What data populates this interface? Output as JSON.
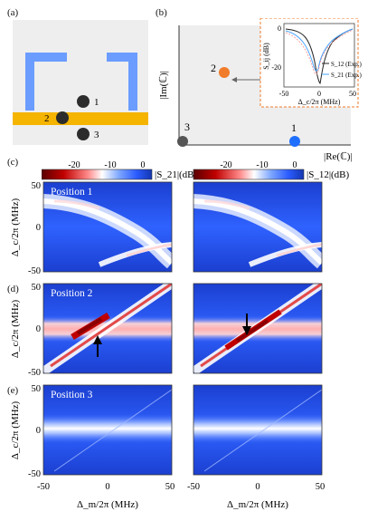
{
  "panels": {
    "a": "(a)",
    "b": "(b)",
    "c": "(c)",
    "d": "(d)",
    "e": "(e)"
  },
  "schematic": {
    "ball_labels": [
      "1",
      "2",
      "3"
    ],
    "colors": {
      "resonator": "#6b9cff",
      "waveguide": "#f5b400",
      "ball": "#2c2c2c"
    }
  },
  "complex_plane": {
    "xlabel": "|Re(ℂ)|",
    "ylabel": "|Im(ℂ)|",
    "points": [
      {
        "label": "1",
        "color": "#1f6fff"
      },
      {
        "label": "2",
        "color": "#f07b2a"
      },
      {
        "label": "3",
        "color": "#555555"
      }
    ],
    "inset": {
      "ylabel": "S_ij (dB)",
      "xlabel": "Δ_c/2π (MHz)",
      "yticks": [
        "0",
        "-20"
      ],
      "xticks": [
        "-50",
        "0",
        "50"
      ],
      "legend": [
        "S_12 (Exp.)",
        "S_21 (Exp.)"
      ],
      "legend_colors": [
        "#222222",
        "#4aa3ff"
      ]
    }
  },
  "colorbar": {
    "ticks": [
      "-20",
      "-10",
      "0"
    ],
    "left_label": "|S_21|(dB)",
    "right_label": "|S_12|(dB)"
  },
  "rows": [
    {
      "label": "Position 1"
    },
    {
      "label": "Position 2"
    },
    {
      "label": "Position 3"
    }
  ],
  "axes": {
    "ylabel": "Δ_c/2π (MHz)",
    "xlabel": "Δ_m/2π (MHz)",
    "yticks": [
      "50",
      "0",
      "-50"
    ],
    "xticks": [
      "-50",
      "0",
      "50"
    ]
  }
}
